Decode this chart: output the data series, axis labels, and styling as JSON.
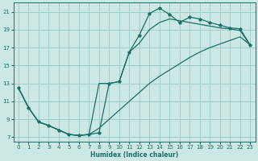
{
  "xlabel": "Humidex (Indice chaleur)",
  "bg_color": "#cce8e5",
  "grid_color": "#99ccc8",
  "line_color": "#1a7068",
  "xmin": -0.5,
  "xmax": 23.5,
  "ymin": 6.5,
  "ymax": 22.0,
  "yticks": [
    7,
    9,
    11,
    13,
    15,
    17,
    19,
    21
  ],
  "xticks": [
    0,
    1,
    2,
    3,
    4,
    5,
    6,
    7,
    8,
    9,
    10,
    11,
    12,
    13,
    14,
    15,
    16,
    17,
    18,
    19,
    20,
    21,
    22,
    23
  ],
  "line_marker_x": [
    0,
    1,
    2,
    3,
    4,
    5,
    6,
    7,
    8,
    9,
    10,
    11,
    12,
    13,
    14,
    15,
    16,
    17,
    18,
    19,
    20,
    21,
    22,
    23
  ],
  "line_marker_y": [
    12.5,
    10.3,
    8.7,
    8.3,
    7.8,
    7.3,
    7.2,
    7.3,
    7.5,
    13.0,
    13.2,
    16.5,
    18.4,
    20.8,
    21.4,
    20.7,
    19.8,
    20.4,
    20.2,
    19.8,
    19.5,
    19.2,
    19.1,
    17.3
  ],
  "line_upper_x": [
    0,
    1,
    2,
    3,
    4,
    5,
    6,
    7,
    8,
    9,
    10,
    11,
    12,
    13,
    14,
    15,
    16,
    17,
    18,
    19,
    20,
    21,
    22,
    23
  ],
  "line_upper_y": [
    12.5,
    10.3,
    8.7,
    8.3,
    7.8,
    7.3,
    7.2,
    7.3,
    13.0,
    13.0,
    13.2,
    16.5,
    17.5,
    19.0,
    19.8,
    20.2,
    20.0,
    19.8,
    19.6,
    19.4,
    19.2,
    19.1,
    18.9,
    17.3
  ],
  "line_lower_x": [
    0,
    1,
    2,
    3,
    4,
    5,
    6,
    7,
    8,
    9,
    10,
    11,
    12,
    13,
    14,
    15,
    16,
    17,
    18,
    19,
    20,
    21,
    22,
    23
  ],
  "line_lower_y": [
    12.5,
    10.3,
    8.7,
    8.3,
    7.8,
    7.3,
    7.2,
    7.3,
    8.0,
    9.0,
    10.0,
    11.0,
    12.0,
    13.0,
    13.8,
    14.5,
    15.2,
    15.9,
    16.5,
    17.0,
    17.4,
    17.8,
    18.2,
    17.3
  ]
}
